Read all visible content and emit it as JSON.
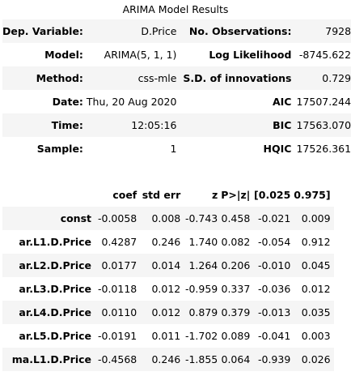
{
  "title": "ARIMA Model Results",
  "summary": {
    "rows": [
      [
        "Dep. Variable:",
        "D.Price",
        "No. Observations:",
        "7928"
      ],
      [
        "Model:",
        "ARIMA(5, 1, 1)",
        "Log Likelihood",
        "-8745.622"
      ],
      [
        "Method:",
        "css-mle",
        "S.D. of innovations",
        "0.729"
      ],
      [
        "Date:",
        "Thu, 20 Aug 2020",
        "AIC",
        "17507.244"
      ],
      [
        "Time:",
        "12:05:16",
        "BIC",
        "17563.070"
      ],
      [
        "Sample:",
        "1",
        "HQIC",
        "17526.361"
      ]
    ]
  },
  "coef_table": {
    "headers": [
      "",
      "coef",
      "std err",
      "z",
      "P>|z|",
      "[0.025",
      "0.975]"
    ],
    "rows": [
      [
        "const",
        "-0.0058",
        "0.008",
        "-0.743",
        "0.458",
        "-0.021",
        "0.009"
      ],
      [
        "ar.L1.D.Price",
        "0.4287",
        "0.246",
        "1.740",
        "0.082",
        "-0.054",
        "0.912"
      ],
      [
        "ar.L2.D.Price",
        "0.0177",
        "0.014",
        "1.264",
        "0.206",
        "-0.010",
        "0.045"
      ],
      [
        "ar.L3.D.Price",
        "-0.0118",
        "0.012",
        "-0.959",
        "0.337",
        "-0.036",
        "0.012"
      ],
      [
        "ar.L4.D.Price",
        "0.0110",
        "0.012",
        "0.879",
        "0.379",
        "-0.013",
        "0.035"
      ],
      [
        "ar.L5.D.Price",
        "-0.0191",
        "0.011",
        "-1.702",
        "0.089",
        "-0.041",
        "0.003"
      ],
      [
        "ma.L1.D.Price",
        "-0.4568",
        "0.246",
        "-1.855",
        "0.064",
        "-0.939",
        "0.026"
      ]
    ]
  }
}
